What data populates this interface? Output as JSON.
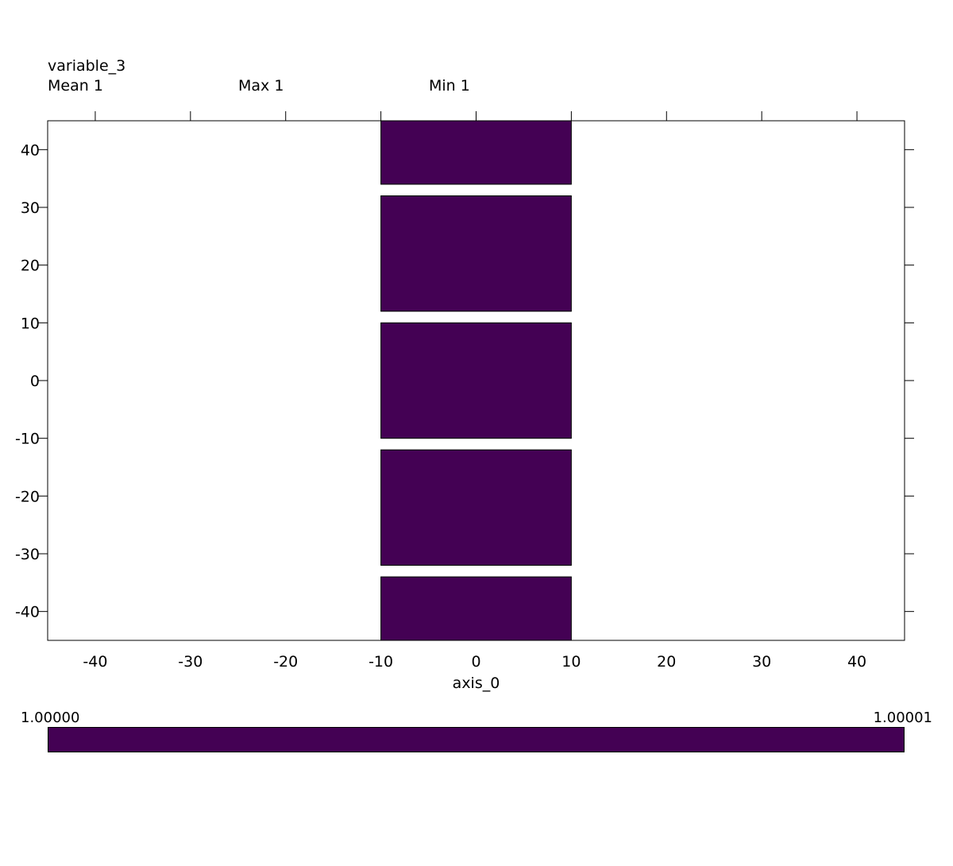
{
  "header": {
    "variable": "variable_3",
    "stats": [
      {
        "label": "Mean",
        "value": "1"
      },
      {
        "label": "Max",
        "value": "1"
      },
      {
        "label": "Min",
        "value": "1"
      }
    ]
  },
  "chart_data": {
    "type": "heatmap",
    "xlabel": "axis_0",
    "ylabel": "",
    "xlim": [
      -45,
      45
    ],
    "ylim": [
      -45,
      45
    ],
    "x_ticks": [
      -40,
      -30,
      -20,
      -10,
      0,
      10,
      20,
      30,
      40
    ],
    "y_ticks": [
      40,
      30,
      20,
      10,
      0,
      -10,
      -20,
      -30,
      -40
    ],
    "cells": [
      {
        "x": [
          -10,
          10
        ],
        "y": [
          34,
          45
        ],
        "value": 1.0
      },
      {
        "x": [
          -10,
          10
        ],
        "y": [
          12,
          32
        ],
        "value": 1.0
      },
      {
        "x": [
          -10,
          10
        ],
        "y": [
          -10,
          10
        ],
        "value": 1.0
      },
      {
        "x": [
          -10,
          10
        ],
        "y": [
          -32,
          -12
        ],
        "value": 1.0
      },
      {
        "x": [
          -10,
          10
        ],
        "y": [
          -45,
          -34
        ],
        "value": 1.0
      }
    ],
    "cell_color": "#440154",
    "colorbar": {
      "min_label": "1.00000",
      "max_label": "1.00001",
      "color": "#440154"
    }
  }
}
